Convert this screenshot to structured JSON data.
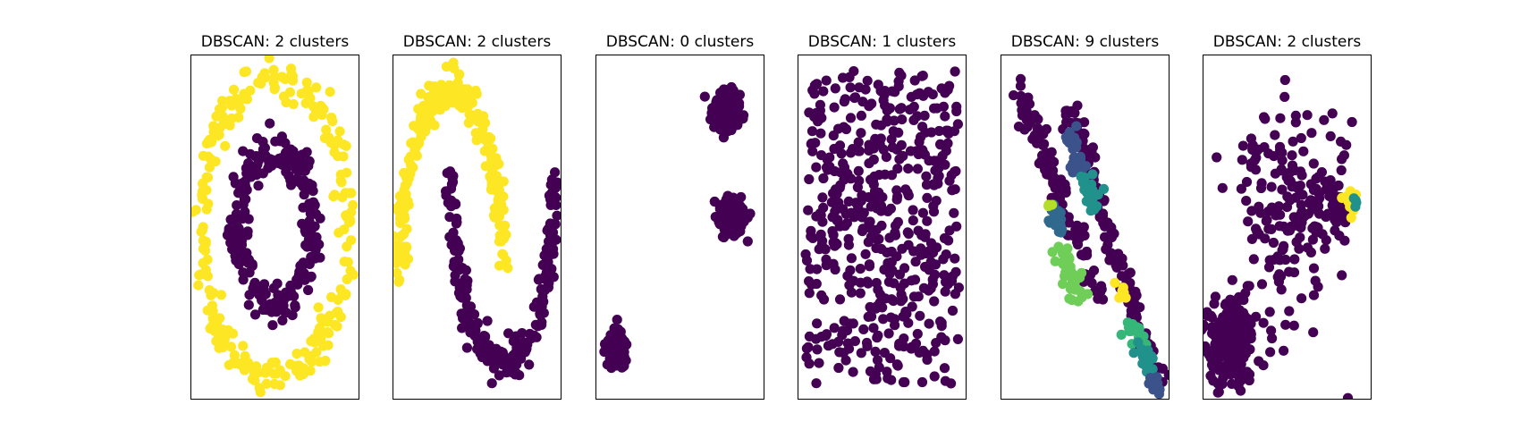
{
  "figure": {
    "background": "#ffffff",
    "marker_colors": {
      "noise_purple": "#440154",
      "blue": "#3b528b",
      "slate": "#31688e",
      "teal": "#21918c",
      "green_teal": "#35b779",
      "light_green": "#6ece58",
      "lime": "#b5de2b",
      "yellow": "#fde725"
    }
  },
  "chart_data": [
    {
      "type": "scatter",
      "title": "DBSCAN: 2 clusters",
      "xlim": [
        -1.15,
        1.15
      ],
      "ylim": [
        -1.15,
        1.15
      ],
      "axis_ticks": "hidden",
      "grid": false,
      "shapes": [
        {
          "kind": "ring",
          "cx": 0,
          "cy": 0,
          "rx": 1.0,
          "ry": 1.0,
          "jitter": 0.07,
          "n": 250,
          "color": "#fde725"
        },
        {
          "kind": "ring",
          "cx": 0,
          "cy": 0,
          "rx": 0.5,
          "ry": 0.5,
          "jitter": 0.07,
          "n": 250,
          "color": "#440154"
        }
      ]
    },
    {
      "type": "scatter",
      "title": "DBSCAN: 2 clusters",
      "xlim": [
        -1.15,
        2.15
      ],
      "ylim": [
        -0.7,
        1.2
      ],
      "axis_ticks": "hidden",
      "grid": false,
      "shapes": [
        {
          "kind": "arc",
          "cx": 0,
          "cy": 0,
          "r": 1,
          "from": 0,
          "to": 180,
          "jitter": 0.06,
          "n": 250,
          "color": "#fde725"
        },
        {
          "kind": "arc",
          "cx": 1,
          "cy": 0.5,
          "r": 1,
          "from": 180,
          "to": 360,
          "jitter": 0.06,
          "n": 250,
          "color": "#440154"
        }
      ]
    },
    {
      "type": "scatter",
      "title": "DBSCAN: 0 clusters",
      "xlim": [
        -8,
        8
      ],
      "ylim": [
        -14,
        14
      ],
      "axis_ticks": "hidden",
      "grid": false,
      "shapes": [
        {
          "kind": "blob",
          "cx": 4.4,
          "cy": 9.5,
          "sx": 0.6,
          "sy": 0.8,
          "n": 170,
          "color": "#440154"
        },
        {
          "kind": "blob",
          "cx": 4.9,
          "cy": 0.9,
          "sx": 0.6,
          "sy": 0.8,
          "n": 170,
          "color": "#440154"
        },
        {
          "kind": "blob",
          "cx": -6.0,
          "cy": -9.8,
          "sx": 0.5,
          "sy": 0.7,
          "n": 160,
          "color": "#440154"
        }
      ]
    },
    {
      "type": "scatter",
      "title": "DBSCAN: 1 clusters",
      "xlim": [
        -0.05,
        1.05
      ],
      "ylim": [
        -0.05,
        1.05
      ],
      "axis_ticks": "hidden",
      "grid": false,
      "shapes": [
        {
          "kind": "uniform",
          "x0": 0,
          "x1": 1,
          "y0": 0,
          "y1": 1,
          "n": 500,
          "color": "#440154"
        }
      ]
    },
    {
      "type": "scatter",
      "title": "DBSCAN: 9 clusters",
      "xlim": [
        -1,
        11
      ],
      "ylim": [
        -13.5,
        13.5
      ],
      "axis_ticks": "hidden",
      "grid": false,
      "shapes": [
        {
          "kind": "band",
          "x0": 0.0,
          "y0": 11.3,
          "x1": 6.3,
          "y1": -6.0,
          "width": 0.35,
          "n": 110,
          "color": "#440154"
        },
        {
          "kind": "band",
          "x0": 3.8,
          "y0": 9.8,
          "x1": 10.3,
          "y1": -12.8,
          "width": 0.35,
          "n": 140,
          "color": "#440154"
        },
        {
          "kind": "band",
          "x0": 4.1,
          "y0": 7.5,
          "x1": 4.6,
          "y1": 4.5,
          "width": 0.25,
          "n": 30,
          "color": "#3b528b"
        },
        {
          "kind": "band",
          "x0": 5.1,
          "y0": 3.8,
          "x1": 5.6,
          "y1": 1.6,
          "width": 0.3,
          "n": 30,
          "color": "#21918c"
        },
        {
          "kind": "band",
          "x0": 2.8,
          "y0": 1.6,
          "x1": 3.3,
          "y1": -0.5,
          "width": 0.25,
          "n": 20,
          "color": "#31688e"
        },
        {
          "kind": "band",
          "x0": 3.2,
          "y0": -1.9,
          "x1": 4.6,
          "y1": -5.6,
          "width": 0.35,
          "n": 45,
          "color": "#6ece58"
        },
        {
          "kind": "band",
          "x0": 8.2,
          "y0": -7.6,
          "x1": 9.0,
          "y1": -9.3,
          "width": 0.3,
          "n": 20,
          "color": "#35b779"
        },
        {
          "kind": "band",
          "x0": 9.0,
          "y0": -9.4,
          "x1": 9.6,
          "y1": -11.5,
          "width": 0.3,
          "n": 20,
          "color": "#21918c"
        },
        {
          "kind": "band",
          "x0": 9.7,
          "y0": -11.5,
          "x1": 10.0,
          "y1": -13.0,
          "width": 0.3,
          "n": 14,
          "color": "#3b528b"
        },
        {
          "kind": "blob",
          "cx": 7.6,
          "cy": -5.3,
          "sx": 0.18,
          "sy": 0.35,
          "n": 8,
          "color": "#fde725"
        },
        {
          "kind": "blob",
          "cx": 2.5,
          "cy": 1.6,
          "sx": 0.1,
          "sy": 0.15,
          "n": 3,
          "color": "#b5de2b"
        }
      ]
    },
    {
      "type": "scatter",
      "title": "DBSCAN: 2 clusters",
      "xlim": [
        -1.2,
        1.2
      ],
      "ylim": [
        -1.85,
        1.85
      ],
      "axis_ticks": "hidden",
      "grid": false,
      "shapes": [
        {
          "kind": "blob",
          "cx": -0.8,
          "cy": -1.25,
          "sx": 0.17,
          "sy": 0.24,
          "n": 230,
          "color": "#440154"
        },
        {
          "kind": "blob",
          "cx": 0.0,
          "cy": 0.15,
          "sx": 0.38,
          "sy": 0.55,
          "n": 190,
          "color": "#440154"
        },
        {
          "kind": "blob",
          "cx": 0.72,
          "cy": 0.25,
          "sx": 0.12,
          "sy": 0.12,
          "n": 24,
          "color": "#440154"
        },
        {
          "kind": "blob",
          "cx": 0.89,
          "cy": 0.3,
          "sx": 0.06,
          "sy": 0.08,
          "n": 14,
          "color": "#fde725"
        },
        {
          "kind": "blob",
          "cx": 0.95,
          "cy": 0.27,
          "sx": 0.03,
          "sy": 0.05,
          "n": 4,
          "color": "#21918c"
        }
      ]
    }
  ]
}
